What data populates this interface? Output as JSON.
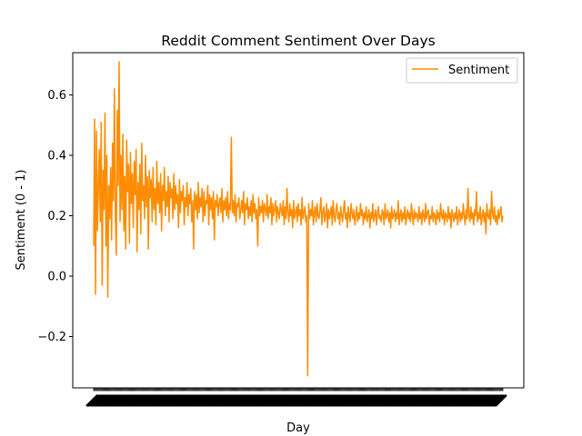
{
  "chart_data": {
    "type": "line",
    "title": "Reddit Comment Sentiment Over Days",
    "xlabel": "Day",
    "ylabel": "Sentiment (0 - 1)",
    "ylim": [
      -0.37,
      0.74
    ],
    "yticks": [
      -0.2,
      0.0,
      0.2,
      0.4,
      0.6
    ],
    "ytick_labels": [
      "−0.2",
      "0.0",
      "0.2",
      "0.4",
      "0.6"
    ],
    "x_tick_labels_note": "",
    "legend": {
      "placement": "top-right",
      "entries": [
        "Sentiment"
      ]
    },
    "grid": false,
    "series": [
      {
        "name": "Sentiment",
        "color": "#ff8c00",
        "values": [
          0.1,
          0.52,
          -0.06,
          0.48,
          0.15,
          0.3,
          0.42,
          0.18,
          0.51,
          -0.03,
          0.35,
          0.22,
          0.54,
          0.1,
          0.4,
          -0.07,
          0.3,
          0.19,
          0.36,
          0.12,
          0.44,
          0.25,
          0.62,
          0.2,
          0.07,
          0.55,
          0.3,
          0.71,
          0.18,
          0.4,
          0.22,
          0.47,
          0.15,
          0.33,
          0.09,
          0.45,
          0.28,
          0.37,
          0.11,
          0.41,
          0.24,
          0.34,
          0.16,
          0.38,
          0.27,
          0.42,
          0.08,
          0.31,
          0.22,
          0.37,
          0.14,
          0.44,
          0.25,
          0.3,
          0.19,
          0.4,
          0.23,
          0.33,
          0.09,
          0.35,
          0.26,
          0.32,
          0.18,
          0.36,
          0.22,
          0.29,
          0.17,
          0.38,
          0.24,
          0.31,
          0.21,
          0.34,
          0.15,
          0.3,
          0.25,
          0.36,
          0.2,
          0.28,
          0.23,
          0.33,
          0.18,
          0.31,
          0.26,
          0.29,
          0.19,
          0.34,
          0.22,
          0.3,
          0.24,
          0.27,
          0.16,
          0.32,
          0.21,
          0.28,
          0.25,
          0.3,
          0.17,
          0.26,
          0.23,
          0.31,
          0.2,
          0.27,
          0.24,
          0.29,
          0.18,
          0.25,
          0.09,
          0.28,
          0.22,
          0.27,
          0.19,
          0.31,
          0.21,
          0.26,
          0.23,
          0.29,
          0.18,
          0.28,
          0.2,
          0.25,
          0.24,
          0.3,
          0.17,
          0.27,
          0.22,
          0.26,
          0.19,
          0.28,
          0.12,
          0.25,
          0.23,
          0.27,
          0.2,
          0.24,
          0.26,
          0.21,
          0.29,
          0.18,
          0.25,
          0.22,
          0.26,
          0.2,
          0.28,
          0.19,
          0.24,
          0.22,
          0.46,
          0.21,
          0.25,
          0.2,
          0.27,
          0.18,
          0.24,
          0.23,
          0.26,
          0.19,
          0.22,
          0.25,
          0.21,
          0.28,
          0.17,
          0.24,
          0.22,
          0.26,
          0.19,
          0.23,
          0.2,
          0.25,
          0.18,
          0.27,
          0.21,
          0.24,
          0.19,
          0.22,
          0.1,
          0.26,
          0.2,
          0.23,
          0.21,
          0.25,
          0.18,
          0.24,
          0.22,
          0.2,
          0.27,
          0.19,
          0.23,
          0.21,
          0.26,
          0.17,
          0.24,
          0.2,
          0.22,
          0.25,
          0.18,
          0.23,
          0.21,
          0.19,
          0.24,
          0.22,
          0.2,
          0.25,
          0.17,
          0.23,
          0.19,
          0.29,
          0.21,
          0.18,
          0.24,
          0.2,
          0.22,
          0.16,
          0.25,
          0.19,
          0.21,
          0.23,
          0.18,
          0.24,
          0.2,
          0.22,
          0.17,
          0.26,
          0.19,
          0.21,
          0.23,
          0.18,
          0.2,
          -0.33,
          0.24,
          0.19,
          0.22,
          0.2,
          0.25,
          0.17,
          0.21,
          0.23,
          0.18,
          0.24,
          0.2,
          0.19,
          0.22,
          0.26,
          0.17,
          0.21,
          0.23,
          0.18,
          0.2,
          0.24,
          0.16,
          0.22,
          0.19,
          0.21,
          0.23,
          0.17,
          0.25,
          0.2,
          0.18,
          0.22,
          0.24,
          0.19,
          0.21,
          0.17,
          0.23,
          0.2,
          0.18,
          0.22,
          0.25,
          0.19,
          0.21,
          0.16,
          0.23,
          0.2,
          0.18,
          0.24,
          0.21,
          0.19,
          0.22,
          0.17,
          0.2,
          0.23,
          0.18,
          0.21,
          0.19,
          0.24,
          0.2,
          0.22,
          0.17,
          0.21,
          0.19,
          0.23,
          0.18,
          0.2,
          0.22,
          0.16,
          0.21,
          0.19,
          0.24,
          0.18,
          0.2,
          0.22,
          0.17,
          0.21,
          0.23,
          0.19,
          0.2,
          0.18,
          0.22,
          0.21,
          0.17,
          0.24,
          0.19,
          0.2,
          0.22,
          0.18,
          0.21,
          0.16,
          0.23,
          0.19,
          0.2,
          0.22,
          0.18,
          0.21,
          0.19,
          0.25,
          0.17,
          0.2,
          0.22,
          0.18,
          0.21,
          0.19,
          0.23,
          0.17,
          0.2,
          0.22,
          0.19,
          0.21,
          0.18,
          0.24,
          0.2,
          0.17,
          0.22,
          0.19,
          0.21,
          0.2,
          0.18,
          0.23,
          0.19,
          0.21,
          0.17,
          0.22,
          0.2,
          0.18,
          0.24,
          0.19,
          0.21,
          0.22,
          0.17,
          0.2,
          0.19,
          0.23,
          0.18,
          0.21,
          0.2,
          0.17,
          0.22,
          0.19,
          0.21,
          0.18,
          0.24,
          0.2,
          0.19,
          0.22,
          0.17,
          0.21,
          0.2,
          0.18,
          0.23,
          0.19,
          0.21,
          0.16,
          0.22,
          0.2,
          0.18,
          0.21,
          0.19,
          0.23,
          0.17,
          0.2,
          0.22,
          0.18,
          0.21,
          0.19,
          0.24,
          0.2,
          0.17,
          0.22,
          0.19,
          0.29,
          0.2,
          0.18,
          0.23,
          0.19,
          0.21,
          0.17,
          0.22,
          0.2,
          0.28,
          0.18,
          0.21,
          0.19,
          0.23,
          0.17,
          0.2,
          0.22,
          0.18,
          0.21,
          0.14,
          0.24,
          0.2,
          0.19,
          0.22,
          0.17,
          0.28,
          0.21,
          0.19,
          0.23,
          0.18,
          0.2,
          0.17,
          0.22,
          0.19,
          0.21,
          0.23,
          0.18,
          0.2
        ]
      }
    ]
  }
}
